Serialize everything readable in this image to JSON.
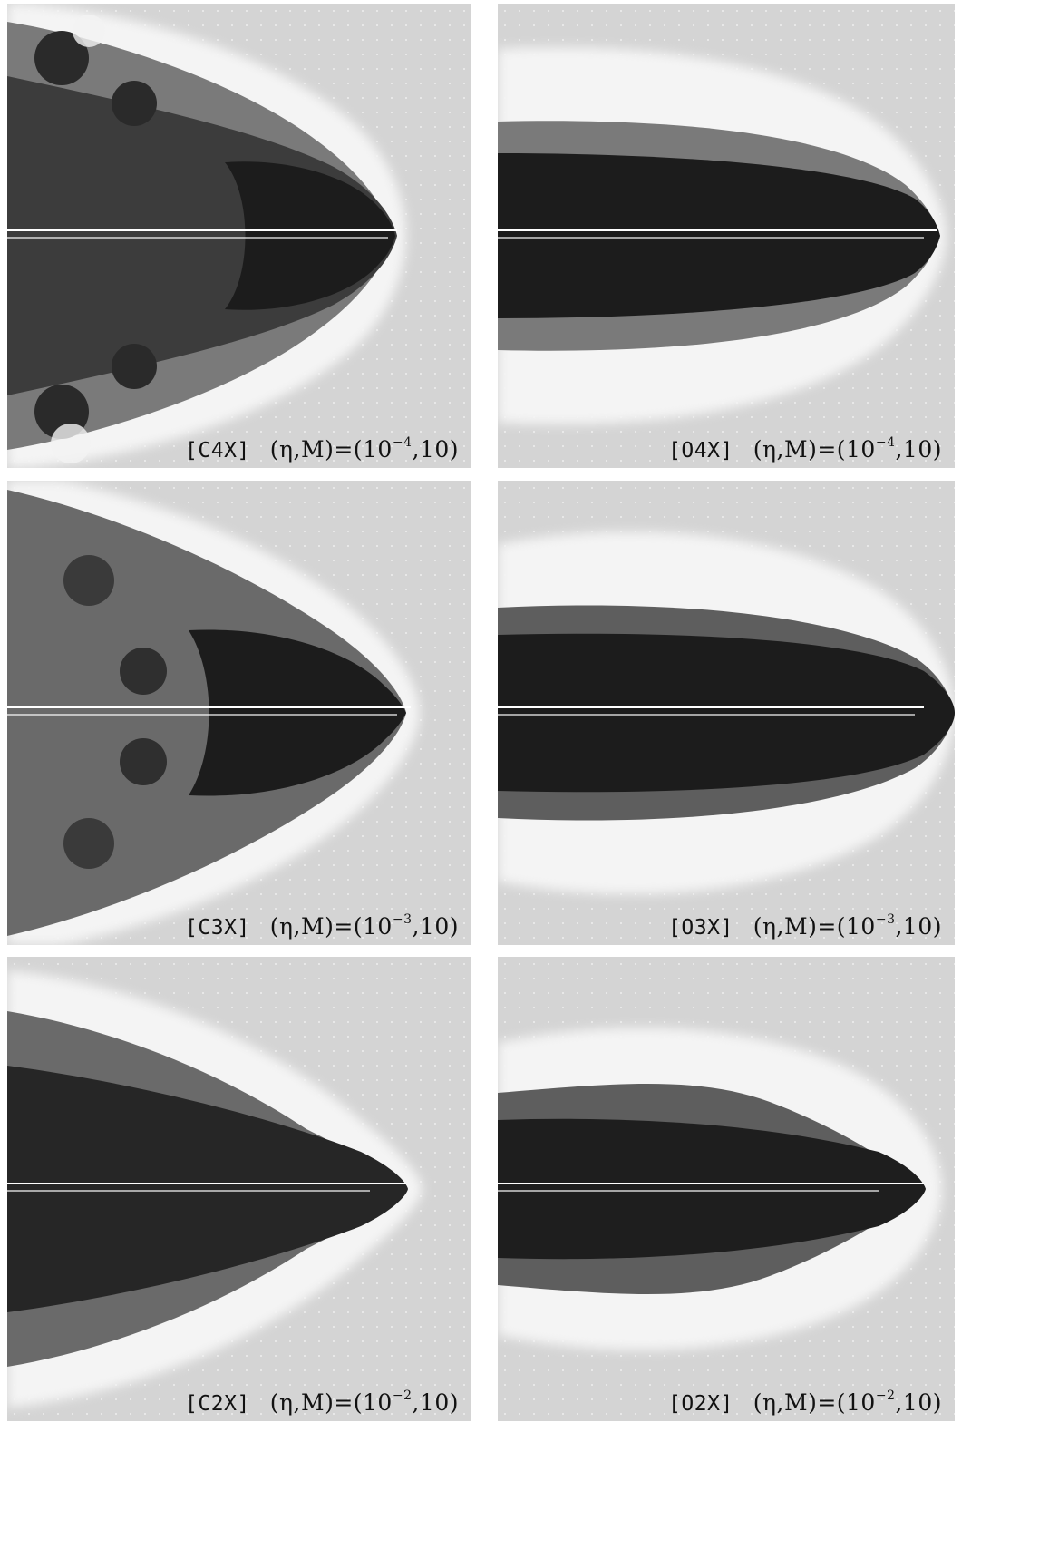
{
  "figure": {
    "panels": [
      {
        "id": "C4X",
        "tag": "[C4X]",
        "eta_prefix": "(η,M)=(10",
        "eta_exp": "−4",
        "eta_suffix": ",10)"
      },
      {
        "id": "O4X",
        "tag": "[O4X]",
        "eta_prefix": "(η,M)=(10",
        "eta_exp": "−4",
        "eta_suffix": ",10)"
      },
      {
        "id": "C3X",
        "tag": "[C3X]",
        "eta_prefix": "(η,M)=(10",
        "eta_exp": "−3",
        "eta_suffix": ",10)"
      },
      {
        "id": "O3X",
        "tag": "[O3X]",
        "eta_prefix": "(η,M)=(10",
        "eta_exp": "−3",
        "eta_suffix": ",10)"
      },
      {
        "id": "C2X",
        "tag": "[C2X]",
        "eta_prefix": "(η,M)=(10",
        "eta_exp": "−2",
        "eta_suffix": ",10)"
      },
      {
        "id": "O2X",
        "tag": "[O2X]",
        "eta_prefix": "(η,M)=(10",
        "eta_exp": "−2",
        "eta_suffix": ",10)"
      }
    ],
    "colors": {
      "ambient": "#d4d4d4",
      "shell": "#f4f4f4",
      "cocoon": "#6e6e6e",
      "core": "#1e1e1e",
      "beam": "#ffffff"
    }
  }
}
